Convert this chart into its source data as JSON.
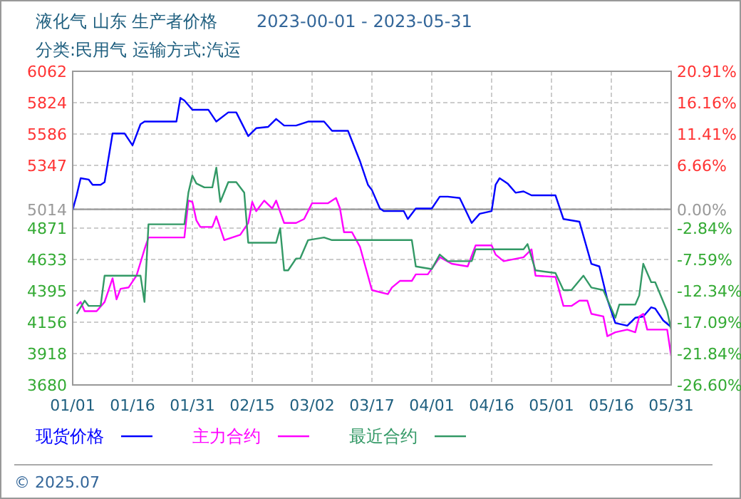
{
  "chart_data": {
    "type": "line",
    "title": "液化气 山东 生产者价格",
    "subtitle": "分类:民用气 运输方式:汽运",
    "annotations": [
      "2023-00-01 - 2023-05-31",
      "© 2025.07"
    ],
    "xlim": [
      "2023-01-01",
      "2023-05-31"
    ],
    "xticks": [
      {
        "value": "2023-01-01",
        "label": "01/01"
      },
      {
        "value": "2023-01-16",
        "label": "01/16"
      },
      {
        "value": "2023-01-31",
        "label": "01/31"
      },
      {
        "value": "2023-02-15",
        "label": "02/15"
      },
      {
        "value": "2023-03-02",
        "label": "03/02"
      },
      {
        "value": "2023-03-17",
        "label": "03/17"
      },
      {
        "value": "2023-04-01",
        "label": "04/01"
      },
      {
        "value": "2023-04-16",
        "label": "04/16"
      },
      {
        "value": "2023-05-01",
        "label": "05/01"
      },
      {
        "value": "2023-05-16",
        "label": "05/16"
      },
      {
        "value": "2023-05-31",
        "label": "05/31"
      }
    ],
    "ylim": [
      3680,
      6062
    ],
    "yticks": [
      3680,
      3918,
      4156,
      4395,
      4633,
      4871,
      5014,
      5347,
      5586,
      5824,
      6062
    ],
    "y2lim": [
      -26.6,
      20.91
    ],
    "y2ticks": [
      {
        "value": -26.6,
        "label": "-26.60%"
      },
      {
        "value": -21.84,
        "label": "-21.84%"
      },
      {
        "value": -17.09,
        "label": "-17.09%"
      },
      {
        "value": -12.34,
        "label": "-12.34%"
      },
      {
        "value": -7.59,
        "label": "-7.59%"
      },
      {
        "value": -2.84,
        "label": "-2.84%"
      },
      {
        "value": 0,
        "label": "0.00%"
      },
      {
        "value": 6.66,
        "label": "6.66%"
      },
      {
        "value": 11.41,
        "label": "11.41%"
      },
      {
        "value": 16.16,
        "label": "16.16%"
      },
      {
        "value": 20.91,
        "label": "20.91%"
      }
    ],
    "ref_lines": [
      {
        "axis": "y",
        "value": 5014,
        "color": "#999999"
      }
    ],
    "grid": true,
    "legend": "bottom",
    "line_style": "solid",
    "series": [
      {
        "name": "现货价格",
        "color": "#0000ff",
        "x": [
          "2023-01-01",
          "2023-01-02",
          "2023-01-03",
          "2023-01-05",
          "2023-01-06",
          "2023-01-08",
          "2023-01-09",
          "2023-01-11",
          "2023-01-14",
          "2023-01-16",
          "2023-01-18",
          "2023-01-19",
          "2023-01-27",
          "2023-01-28",
          "2023-01-29",
          "2023-01-31",
          "2023-02-04",
          "2023-02-06",
          "2023-02-09",
          "2023-02-11",
          "2023-02-14",
          "2023-02-16",
          "2023-02-19",
          "2023-02-21",
          "2023-02-23",
          "2023-02-26",
          "2023-03-01",
          "2023-03-05",
          "2023-03-07",
          "2023-03-11",
          "2023-03-14",
          "2023-03-16",
          "2023-03-17",
          "2023-03-19",
          "2023-03-20",
          "2023-03-25",
          "2023-03-26",
          "2023-03-28",
          "2023-04-01",
          "2023-04-03",
          "2023-04-05",
          "2023-04-08",
          "2023-04-11",
          "2023-04-13",
          "2023-04-16",
          "2023-04-17",
          "2023-04-18",
          "2023-04-20",
          "2023-04-22",
          "2023-04-24",
          "2023-04-26",
          "2023-05-02",
          "2023-05-04",
          "2023-05-08",
          "2023-05-11",
          "2023-05-13",
          "2023-05-15",
          "2023-05-17",
          "2023-05-20",
          "2023-05-22",
          "2023-05-24",
          "2023-05-26",
          "2023-05-27",
          "2023-05-29",
          "2023-05-31"
        ],
        "values": [
          5010,
          5120,
          5250,
          5240,
          5200,
          5200,
          5220,
          5590,
          5590,
          5500,
          5660,
          5680,
          5680,
          5860,
          5840,
          5770,
          5770,
          5680,
          5750,
          5750,
          5570,
          5630,
          5640,
          5700,
          5650,
          5650,
          5680,
          5680,
          5610,
          5610,
          5380,
          5200,
          5160,
          5020,
          5000,
          5000,
          4940,
          5020,
          5020,
          5110,
          5110,
          5100,
          4910,
          4980,
          5000,
          5200,
          5250,
          5210,
          5140,
          5150,
          5120,
          5120,
          4940,
          4920,
          4600,
          4580,
          4330,
          4150,
          4130,
          4190,
          4200,
          4270,
          4260,
          4170,
          4120
        ]
      },
      {
        "name": "主力合约",
        "color": "#ff00ff",
        "x": [
          "2023-01-02",
          "2023-01-03",
          "2023-01-04",
          "2023-01-07",
          "2023-01-09",
          "2023-01-11",
          "2023-01-12",
          "2023-01-13",
          "2023-01-15",
          "2023-01-17",
          "2023-01-19",
          "2023-01-20",
          "2023-01-29",
          "2023-01-30",
          "2023-01-31",
          "2023-02-01",
          "2023-02-02",
          "2023-02-05",
          "2023-02-06",
          "2023-02-08",
          "2023-02-12",
          "2023-02-14",
          "2023-02-15",
          "2023-02-16",
          "2023-02-18",
          "2023-02-20",
          "2023-02-21",
          "2023-02-23",
          "2023-02-26",
          "2023-02-28",
          "2023-03-02",
          "2023-03-06",
          "2023-03-08",
          "2023-03-09",
          "2023-03-10",
          "2023-03-12",
          "2023-03-14",
          "2023-03-17",
          "2023-03-21",
          "2023-03-22",
          "2023-03-24",
          "2023-03-27",
          "2023-03-28",
          "2023-03-31",
          "2023-04-03",
          "2023-04-06",
          "2023-04-10",
          "2023-04-12",
          "2023-04-16",
          "2023-04-17",
          "2023-04-19",
          "2023-04-24",
          "2023-04-26",
          "2023-04-27",
          "2023-05-02",
          "2023-05-04",
          "2023-05-06",
          "2023-05-08",
          "2023-05-10",
          "2023-05-11",
          "2023-05-14",
          "2023-05-15",
          "2023-05-17",
          "2023-05-20",
          "2023-05-22",
          "2023-05-23",
          "2023-05-24",
          "2023-05-25",
          "2023-05-30",
          "2023-05-31"
        ],
        "values": [
          4280,
          4310,
          4240,
          4240,
          4310,
          4490,
          4330,
          4410,
          4420,
          4510,
          4710,
          4800,
          4800,
          5080,
          5070,
          4930,
          4880,
          4880,
          4960,
          4780,
          4820,
          4910,
          5070,
          5000,
          5080,
          5020,
          5080,
          4910,
          4910,
          4940,
          5060,
          5060,
          5100,
          5020,
          4840,
          4840,
          4730,
          4400,
          4370,
          4420,
          4470,
          4470,
          4520,
          4520,
          4650,
          4600,
          4580,
          4740,
          4740,
          4670,
          4620,
          4650,
          4710,
          4510,
          4500,
          4280,
          4280,
          4320,
          4320,
          4220,
          4200,
          4050,
          4080,
          4100,
          4080,
          4200,
          4220,
          4100,
          4100,
          3900
        ]
      },
      {
        "name": "最近合约",
        "color": "#339966",
        "x": [
          "2023-01-02",
          "2023-01-04",
          "2023-01-05",
          "2023-01-08",
          "2023-01-09",
          "2023-01-18",
          "2023-01-19",
          "2023-01-20",
          "2023-01-29",
          "2023-01-30",
          "2023-01-31",
          "2023-02-01",
          "2023-02-03",
          "2023-02-05",
          "2023-02-06",
          "2023-02-07",
          "2023-02-09",
          "2023-02-11",
          "2023-02-13",
          "2023-02-14",
          "2023-02-21",
          "2023-02-22",
          "2023-02-23",
          "2023-02-24",
          "2023-02-26",
          "2023-02-27",
          "2023-03-01",
          "2023-03-05",
          "2023-03-07",
          "2023-03-27",
          "2023-03-28",
          "2023-04-01",
          "2023-04-03",
          "2023-04-05",
          "2023-04-11",
          "2023-04-12",
          "2023-04-24",
          "2023-04-25",
          "2023-04-27",
          "2023-05-02",
          "2023-05-04",
          "2023-05-06",
          "2023-05-09",
          "2023-05-11",
          "2023-05-14",
          "2023-05-17",
          "2023-05-18",
          "2023-05-22",
          "2023-05-23",
          "2023-05-24",
          "2023-05-26",
          "2023-05-27",
          "2023-05-30",
          "2023-05-31"
        ],
        "values": [
          4220,
          4320,
          4280,
          4280,
          4510,
          4510,
          4310,
          4900,
          4900,
          5140,
          5270,
          5210,
          5180,
          5180,
          5330,
          5070,
          5220,
          5220,
          5140,
          4760,
          4760,
          4870,
          4550,
          4550,
          4640,
          4640,
          4780,
          4800,
          4780,
          4780,
          4580,
          4560,
          4670,
          4620,
          4620,
          4710,
          4710,
          4750,
          4550,
          4530,
          4400,
          4400,
          4510,
          4420,
          4400,
          4190,
          4290,
          4290,
          4360,
          4600,
          4460,
          4460,
          4240,
          4100
        ]
      }
    ]
  }
}
